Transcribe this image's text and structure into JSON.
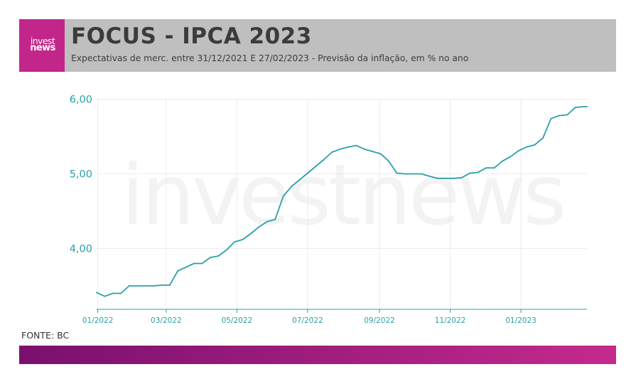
{
  "header": {
    "logo_line1": "invest",
    "logo_line2": "news",
    "title": "FOCUS - IPCA 2023",
    "subtitle": "Expectativas de merc. entre 31/12/2021 E 27/02/2023 - Previsão da inflação, em % no ano"
  },
  "source": "FONTE: BC",
  "watermark": "investnews",
  "colors": {
    "header_band": "#bfbfbf",
    "logo_bg": "#c2268a",
    "line": "#2aa0a8",
    "axis_text": "#2aa0a8",
    "footer_left": "#7a106e",
    "footer_right": "#c42a8c"
  },
  "chart_data": {
    "type": "line",
    "title": "FOCUS - IPCA 2023",
    "xlabel": "",
    "ylabel": "",
    "y_tick_labels": [
      "6,00",
      "5,00",
      "4,00"
    ],
    "y_tick_values": [
      6.0,
      5.0,
      4.0
    ],
    "x_tick_labels": [
      "01/2022",
      "03/2022",
      "05/2022",
      "07/2022",
      "09/2022",
      "11/2022",
      "01/2023"
    ],
    "x_tick_values": [
      "2022-01-01",
      "2022-03-01",
      "2022-05-01",
      "2022-07-01",
      "2022-09-01",
      "2022-11-01",
      "2023-01-01"
    ],
    "xlim": [
      "2021-12-31",
      "2023-02-27"
    ],
    "ylim": [
      3.2,
      6.1
    ],
    "grid": true,
    "legend": "none",
    "series": [
      {
        "x": [
          "2021-12-31",
          "2022-01-07",
          "2022-01-14",
          "2022-01-21",
          "2022-01-28",
          "2022-02-04",
          "2022-02-11",
          "2022-02-18",
          "2022-02-25",
          "2022-03-04",
          "2022-03-11",
          "2022-03-18",
          "2022-03-25",
          "2022-04-01",
          "2022-04-08",
          "2022-04-15",
          "2022-04-22",
          "2022-04-29",
          "2022-05-06",
          "2022-05-13",
          "2022-05-20",
          "2022-05-27",
          "2022-06-03",
          "2022-06-10",
          "2022-06-17",
          "2022-06-24",
          "2022-07-01",
          "2022-07-08",
          "2022-07-15",
          "2022-07-22",
          "2022-07-29",
          "2022-08-05",
          "2022-08-12",
          "2022-08-19",
          "2022-08-26",
          "2022-09-02",
          "2022-09-09",
          "2022-09-16",
          "2022-09-23",
          "2022-09-30",
          "2022-10-07",
          "2022-10-14",
          "2022-10-21",
          "2022-10-28",
          "2022-11-04",
          "2022-11-11",
          "2022-11-18",
          "2022-11-25",
          "2022-12-02",
          "2022-12-09",
          "2022-12-16",
          "2022-12-23",
          "2022-12-30",
          "2023-01-06",
          "2023-01-13",
          "2023-01-20",
          "2023-01-27",
          "2023-02-03",
          "2023-02-10",
          "2023-02-17",
          "2023-02-24",
          "2023-02-27"
        ],
        "values": [
          3.41,
          3.36,
          3.4,
          3.4,
          3.5,
          3.5,
          3.5,
          3.5,
          3.51,
          3.51,
          3.7,
          3.75,
          3.8,
          3.8,
          3.88,
          3.9,
          3.98,
          4.09,
          4.12,
          4.2,
          4.29,
          4.36,
          4.39,
          4.7,
          4.83,
          4.92,
          5.01,
          5.1,
          5.19,
          5.29,
          5.33,
          5.36,
          5.38,
          5.33,
          5.3,
          5.27,
          5.17,
          5.01,
          5.0,
          5.0,
          5.0,
          4.97,
          4.94,
          4.94,
          4.94,
          4.95,
          5.01,
          5.02,
          5.08,
          5.08,
          5.17,
          5.23,
          5.31,
          5.36,
          5.39,
          5.48,
          5.74,
          5.78,
          5.79,
          5.89,
          5.9,
          5.9
        ]
      }
    ]
  }
}
